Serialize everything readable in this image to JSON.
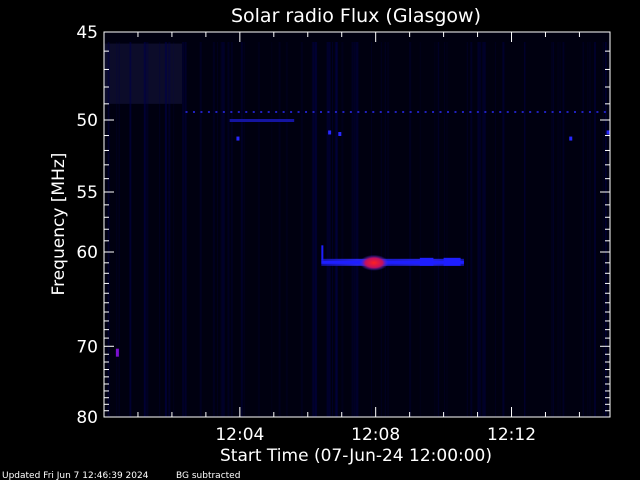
{
  "chart_data": {
    "type": "heatmap",
    "title": "Solar radio Flux (Glasgow)",
    "xlabel": "Start Time (07-Jun-24 12:00:00)",
    "ylabel": "Frequency [MHz]",
    "x_ticks": [
      {
        "minutes": 4,
        "label": "12:04"
      },
      {
        "minutes": 8,
        "label": "12:08"
      },
      {
        "minutes": 12,
        "label": "12:12"
      }
    ],
    "y_ticks": [
      {
        "mhz": 45,
        "label": "45"
      },
      {
        "mhz": 50,
        "label": "50"
      },
      {
        "mhz": 55,
        "label": "55"
      },
      {
        "mhz": 60,
        "label": "60"
      },
      {
        "mhz": 70,
        "label": "70"
      },
      {
        "mhz": 80,
        "label": "80"
      }
    ],
    "xlim": [
      0,
      14.9
    ],
    "ylim": [
      45,
      80
    ],
    "y_scale": "reciprocal",
    "colors": {
      "background": "#000000",
      "plot_bg": "#000010",
      "low": "#00004a",
      "mid": "#1e1eff",
      "high": "#ff1414",
      "axis": "#ffffff"
    },
    "features": [
      {
        "name": "emission-burst",
        "t_start": 6.4,
        "t_end": 10.6,
        "mhz": 61.0
      },
      {
        "name": "burst-peak",
        "t_start": 7.7,
        "t_end": 8.2,
        "mhz": 61.0
      },
      {
        "name": "interference-line",
        "t_start": 3.7,
        "t_end": 5.6,
        "mhz": 50.0
      },
      {
        "name": "dotted-line",
        "t_start": 2.4,
        "t_end": 14.9,
        "mhz": 49.5
      }
    ]
  },
  "footer": {
    "updated": "Updated Fri Jun  7 12:46:39 2024",
    "note": "BG subtracted"
  }
}
